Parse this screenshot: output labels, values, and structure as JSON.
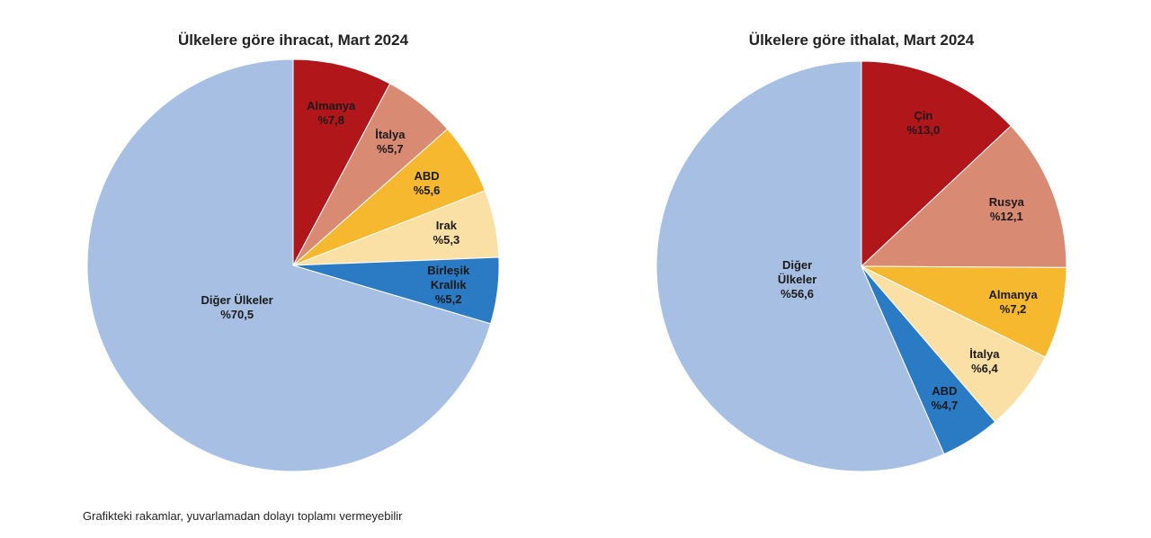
{
  "chart_data": [
    {
      "type": "pie",
      "title": "Ülkelere göre ihracat, Mart 2024",
      "categories": [
        "Almanya",
        "İtalya",
        "ABD",
        "Irak",
        "Birleşik Krallık",
        "Diğer Ülkeler"
      ],
      "values": [
        7.8,
        5.7,
        5.6,
        5.3,
        5.2,
        70.5
      ],
      "value_labels": [
        "%7,8",
        "%5,7",
        "%5,6",
        "%5,3",
        "%5,2",
        "%70,5"
      ],
      "colors": [
        "#b0161a",
        "#d98a72",
        "#f5b82e",
        "#fbe0a6",
        "#2a7ac4",
        "#a6bfe3"
      ]
    },
    {
      "type": "pie",
      "title": "Ülkelere göre ithalat, Mart 2024",
      "categories": [
        "Çin",
        "Rusya",
        "Almanya",
        "İtalya",
        "ABD",
        "Diğer Ülkeler"
      ],
      "values": [
        13.0,
        12.1,
        7.2,
        6.4,
        4.7,
        56.6
      ],
      "value_labels": [
        "%13,0",
        "%12,1",
        "%7,2",
        "%6,4",
        "%4,7",
        "%56,6"
      ],
      "colors": [
        "#b0161a",
        "#d98a72",
        "#f5b82e",
        "#fbe0a6",
        "#2a7ac4",
        "#a6bfe3"
      ]
    }
  ],
  "footnote": "Grafikteki rakamlar, yuvarlamadan dolayı toplamı vermeyebilir"
}
